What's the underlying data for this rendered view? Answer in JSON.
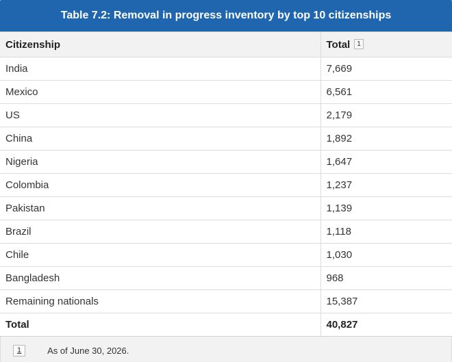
{
  "caption": "Table 7.2: Removal in progress inventory by top 10 citizenships",
  "headers": {
    "citizenship": "Citizenship",
    "total": "Total",
    "total_footnote_ref": "1"
  },
  "rows": [
    {
      "citizenship": "India",
      "total": "7,669"
    },
    {
      "citizenship": "Mexico",
      "total": "6,561"
    },
    {
      "citizenship": "US",
      "total": "2,179"
    },
    {
      "citizenship": "China",
      "total": "1,892"
    },
    {
      "citizenship": "Nigeria",
      "total": "1,647"
    },
    {
      "citizenship": "Colombia",
      "total": "1,237"
    },
    {
      "citizenship": "Pakistan",
      "total": "1,139"
    },
    {
      "citizenship": "Brazil",
      "total": "1,118"
    },
    {
      "citizenship": "Chile",
      "total": "1,030"
    },
    {
      "citizenship": "Bangladesh",
      "total": "968"
    },
    {
      "citizenship": "Remaining nationals",
      "total": "15,387"
    }
  ],
  "total_row": {
    "label": "Total",
    "value": "40,827"
  },
  "footnote": {
    "number": "1",
    "text": "As of June 30, 2026."
  },
  "colors": {
    "caption_bg": "#1f66ae",
    "header_bg": "#f2f2f2"
  }
}
